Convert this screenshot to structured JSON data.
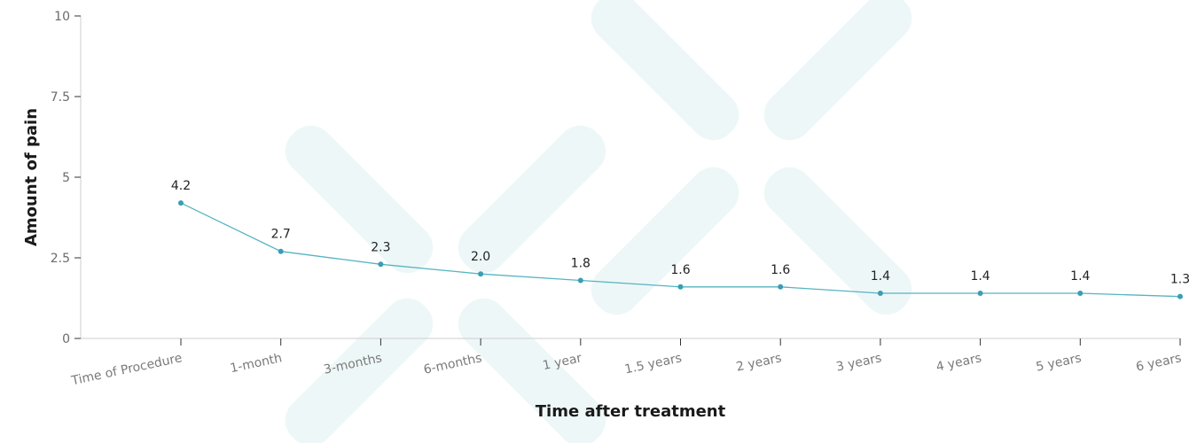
{
  "chart_data": {
    "type": "line",
    "categories": [
      "Time of Procedure",
      "1-month",
      "3-months",
      "6-months",
      "1 year",
      "1.5 years",
      "2 years",
      "3 years",
      "4 years",
      "5 years",
      "6 years"
    ],
    "values": [
      4.2,
      2.7,
      2.3,
      2.0,
      1.8,
      1.6,
      1.6,
      1.4,
      1.4,
      1.4,
      1.3
    ],
    "data_labels": [
      "4.2",
      "2.7",
      "2.3",
      "2.0",
      "1.8",
      "1.6",
      "1.6",
      "1.4",
      "1.4",
      "1.4",
      "1.3"
    ],
    "xlabel": "Time after treatment",
    "ylabel": "Amount of pain",
    "ylim": [
      0,
      10
    ],
    "yticks": [
      0,
      2.5,
      5,
      7.5,
      10
    ],
    "ytick_labels": [
      "0",
      "2.5",
      "5",
      "7.5",
      "10"
    ],
    "grid": false,
    "legend": "none",
    "line_color": "#56b4c1",
    "marker_color": "#3a9db3",
    "watermark_color": "#eef7f7",
    "axis_color": "#cccccc"
  }
}
